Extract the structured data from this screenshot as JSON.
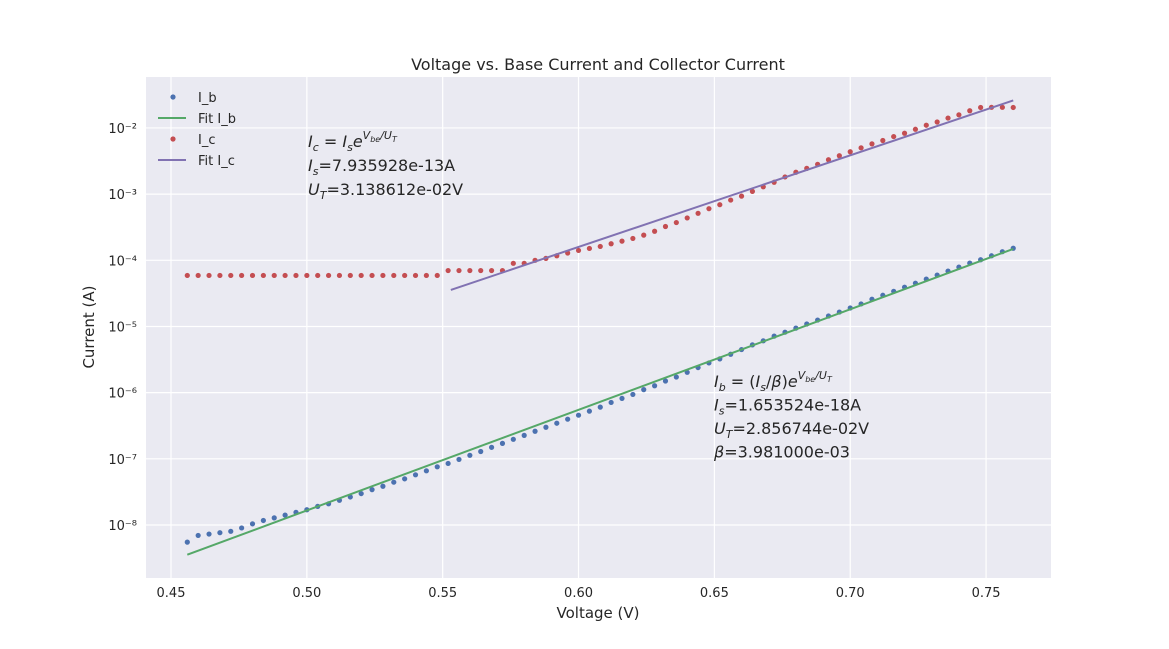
{
  "chart_data": {
    "type": "line",
    "title": "Voltage vs. Base Current and Collector Current",
    "xlabel": "Voltage (V)",
    "ylabel": "Current (A)",
    "ylog": true,
    "grid": true,
    "legend": "upper-left",
    "xlim": [
      0.4408,
      0.7739
    ],
    "ylim": [
      1.58e-09,
      0.0589
    ],
    "xticks": [
      0.45,
      {
        "value": 0.5,
        "label": "0.50"
      },
      0.55,
      {
        "value": 0.6,
        "label": "0.60"
      },
      0.65,
      {
        "value": 0.7,
        "label": "0.70"
      },
      0.75
    ],
    "yticks": [
      {
        "value": 1e-08,
        "label": "10⁻⁸"
      },
      {
        "value": 1e-07,
        "label": "10⁻⁷"
      },
      {
        "value": 1e-06,
        "label": "10⁻⁶"
      },
      {
        "value": 1e-05,
        "label": "10⁻⁵"
      },
      {
        "value": 0.0001,
        "label": "10⁻⁴"
      },
      {
        "value": 0.001,
        "label": "10⁻³"
      },
      {
        "value": 0.01,
        "label": "10⁻²"
      }
    ],
    "x": [
      0.456,
      0.46,
      0.464,
      0.468,
      0.472,
      0.476,
      0.48,
      0.484,
      0.488,
      0.492,
      0.496,
      0.5,
      0.504,
      0.508,
      0.512,
      0.516,
      0.52,
      0.524,
      0.528,
      0.532,
      0.536,
      0.54,
      0.544,
      0.548,
      0.552,
      0.556,
      0.56,
      0.564,
      0.568,
      0.572,
      0.576,
      0.58,
      0.584,
      0.588,
      0.592,
      0.596,
      0.6,
      0.604,
      0.608,
      0.612,
      0.616,
      0.62,
      0.624,
      0.628,
      0.632,
      0.636,
      0.64,
      0.644,
      0.648,
      0.652,
      0.656,
      0.66,
      0.664,
      0.668,
      0.672,
      0.676,
      0.68,
      0.684,
      0.688,
      0.692,
      0.696,
      0.7,
      0.704,
      0.708,
      0.712,
      0.716,
      0.72,
      0.724,
      0.728,
      0.732,
      0.736,
      0.74,
      0.744,
      0.748,
      0.752,
      0.756,
      0.76
    ],
    "series": [
      {
        "name": "I_b",
        "color": "#4c72b0",
        "style": "markers",
        "values": [
          5.51e-09,
          6.95e-09,
          7.29e-09,
          7.64e-09,
          8.02e-09,
          9.02e-09,
          1.04e-08,
          1.17e-08,
          1.28e-08,
          1.41e-08,
          1.55e-08,
          1.7e-08,
          1.91e-08,
          2.09e-08,
          2.36e-08,
          2.65e-08,
          2.98e-08,
          3.42e-08,
          3.85e-08,
          4.43e-08,
          4.98e-08,
          5.73e-08,
          6.58e-08,
          7.57e-08,
          8.51e-08,
          9.79e-08,
          1.13e-07,
          1.29e-07,
          1.49e-07,
          1.71e-07,
          1.97e-07,
          2.26e-07,
          2.61e-07,
          3e-07,
          3.45e-07,
          3.97e-07,
          4.56e-07,
          5.25e-07,
          6.04e-07,
          7.11e-07,
          8.18e-07,
          9.4e-07,
          1.11e-06,
          1.27e-06,
          1.5e-06,
          1.72e-06,
          2.03e-06,
          2.39e-06,
          2.81e-06,
          3.24e-06,
          3.8e-06,
          4.48e-06,
          5.27e-06,
          6.07e-06,
          7.14e-06,
          8.2e-06,
          9.44e-06,
          1.09e-05,
          1.25e-05,
          1.44e-05,
          1.65e-05,
          1.9e-05,
          2.19e-05,
          2.58e-05,
          2.96e-05,
          3.4e-05,
          3.92e-05,
          4.51e-05,
          5.19e-05,
          5.97e-05,
          6.86e-05,
          7.89e-05,
          9.08e-05,
          0.000102,
          0.000117,
          0.000135,
          0.000152
        ]
      },
      {
        "name": "Fit I_b",
        "color": "#55a868",
        "style": "line",
        "x": [
          0.456,
          0.76
        ],
        "values": [
          3.554e-09,
          0.0001487
        ]
      },
      {
        "name": "I_c",
        "color": "#c44e52",
        "style": "markers",
        "values": [
          5.9e-05,
          5.9e-05,
          5.9e-05,
          5.9e-05,
          5.9e-05,
          5.9e-05,
          5.9e-05,
          5.9e-05,
          5.9e-05,
          5.9e-05,
          5.9e-05,
          5.9e-05,
          5.9e-05,
          5.9e-05,
          5.9e-05,
          5.9e-05,
          5.9e-05,
          5.9e-05,
          5.9e-05,
          5.9e-05,
          5.9e-05,
          5.9e-05,
          5.9e-05,
          5.9e-05,
          7e-05,
          7e-05,
          7e-05,
          7e-05,
          7e-05,
          7e-05,
          9e-05,
          9e-05,
          0.0001,
          0.000107,
          0.000117,
          0.000129,
          0.000141,
          0.000151,
          0.000162,
          0.000178,
          0.000195,
          0.000214,
          0.00024,
          0.000275,
          0.000324,
          0.000372,
          0.000437,
          0.000513,
          0.000603,
          0.000692,
          0.000813,
          0.000933,
          0.0011,
          0.00129,
          0.00151,
          0.00182,
          0.00214,
          0.00245,
          0.00282,
          0.00331,
          0.0038,
          0.00437,
          0.00501,
          0.00575,
          0.00646,
          0.00741,
          0.00832,
          0.00955,
          0.011,
          0.0123,
          0.0141,
          0.0158,
          0.0182,
          0.0204,
          0.0205,
          0.0205,
          0.0204
        ]
      },
      {
        "name": "Fit I_c",
        "color": "#8172b2",
        "style": "line",
        "x": [
          0.553,
          0.76
        ],
        "values": [
          3.56e-05,
          0.0261
        ]
      }
    ],
    "annotations": [
      {
        "lines": [
          [
            [
              "I",
              "i"
            ],
            [
              "c",
              "sub"
            ],
            [
              " = ",
              "n"
            ],
            [
              "I",
              "i"
            ],
            [
              "s",
              "sub"
            ],
            [
              "e",
              "i"
            ],
            [
              "V",
              "sup"
            ],
            [
              "be",
              "supsub"
            ],
            [
              "/U",
              "sup"
            ],
            [
              "T",
              "supsub"
            ]
          ],
          [
            [
              "I",
              "i"
            ],
            [
              "s",
              "sub"
            ],
            [
              "=7.935928e-13A",
              "n"
            ]
          ],
          [
            [
              "U",
              "i"
            ],
            [
              "T",
              "sub"
            ],
            [
              "=3.138612e-02V",
              "n"
            ]
          ]
        ]
      },
      {
        "lines": [
          [
            [
              "I",
              "i"
            ],
            [
              "b",
              "sub"
            ],
            [
              " = (",
              "n"
            ],
            [
              "I",
              "i"
            ],
            [
              "s",
              "sub"
            ],
            [
              "/",
              "n"
            ],
            [
              "β",
              "i"
            ],
            [
              ")",
              "n"
            ],
            [
              "e",
              "i"
            ],
            [
              "V",
              "sup"
            ],
            [
              "be",
              "supsub"
            ],
            [
              "/U",
              "sup"
            ],
            [
              "T",
              "supsub"
            ]
          ],
          [
            [
              "I",
              "i"
            ],
            [
              "s",
              "sub"
            ],
            [
              "=1.653524e-18A",
              "n"
            ]
          ],
          [
            [
              "U",
              "i"
            ],
            [
              "T",
              "sub"
            ],
            [
              "=2.856744e-02V",
              "n"
            ]
          ],
          [
            [
              "β",
              "i"
            ],
            [
              "=3.981000e-03",
              "n"
            ]
          ]
        ]
      }
    ]
  }
}
